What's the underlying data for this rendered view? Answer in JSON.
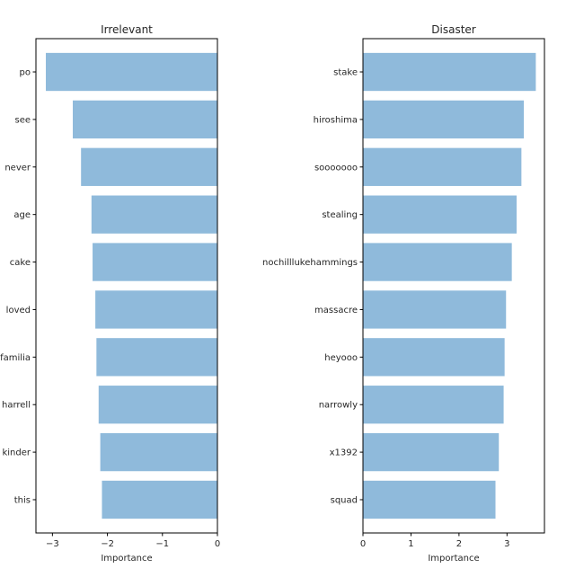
{
  "chart_data": [
    {
      "type": "bar",
      "orientation": "horizontal",
      "title": "Irrelevant",
      "xlabel": "Importance",
      "ylabel": "",
      "categories": [
        "po",
        "see",
        "never",
        "age",
        "cake",
        "loved",
        "familia",
        "pharrell",
        "kinder",
        "this"
      ],
      "visible_category_labels": [
        "po",
        "see",
        "never",
        "age",
        "cake",
        "loved",
        "familia",
        "harrell",
        "kinder",
        "this"
      ],
      "values": [
        -3.12,
        -2.63,
        -2.48,
        -2.29,
        -2.27,
        -2.22,
        -2.2,
        -2.16,
        -2.13,
        -2.1
      ],
      "xlim": [
        -3.3,
        0
      ],
      "xticks": [
        -3,
        -2,
        -1,
        0
      ],
      "xtick_labels": [
        "−3",
        "−2",
        "−1",
        "0"
      ],
      "bar_color": "#8fbadb",
      "grid": false
    },
    {
      "type": "bar",
      "orientation": "horizontal",
      "title": "Disaster",
      "xlabel": "Importance",
      "ylabel": "",
      "categories": [
        "stake",
        "hiroshima",
        "sooooooo",
        "stealing",
        "nochilllukehammings",
        "massacre",
        "heyooo",
        "narrowly",
        "x1392",
        "squad"
      ],
      "visible_category_labels": [
        "stake",
        "hiroshima",
        "sooooooo",
        "stealing",
        "nochilllukehammings",
        "massacre",
        "heyooo",
        "narrowly",
        "x1392",
        "squad"
      ],
      "values": [
        3.6,
        3.35,
        3.3,
        3.2,
        3.1,
        2.98,
        2.95,
        2.93,
        2.83,
        2.76
      ],
      "xlim": [
        0,
        3.78
      ],
      "xticks": [
        0,
        1,
        2,
        3
      ],
      "xtick_labels": [
        "0",
        "1",
        "2",
        "3"
      ],
      "bar_color": "#8fbadb",
      "grid": false
    }
  ]
}
